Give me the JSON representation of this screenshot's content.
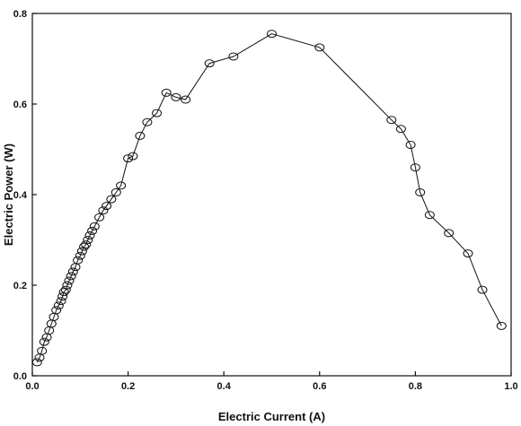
{
  "chart_data": {
    "type": "scatter",
    "title": "",
    "xlabel": "Electric Current (A)",
    "ylabel": "Electric Power (W)",
    "xlim": [
      0.0,
      1.0
    ],
    "ylim": [
      0.0,
      0.8
    ],
    "x_ticks": [
      "0.0",
      "0.2",
      "0.4",
      "0.6",
      "0.8",
      "1.0"
    ],
    "y_ticks": [
      "0.0",
      "0.2",
      "0.4",
      "0.6",
      "0.8"
    ],
    "grid": false,
    "legend": "none",
    "marker": "open-ellipse",
    "line": "connected",
    "series": [
      {
        "x": [
          0.01,
          0.015,
          0.02,
          0.025,
          0.03,
          0.035,
          0.04,
          0.045,
          0.05,
          0.055,
          0.06,
          0.063,
          0.066,
          0.07,
          0.073,
          0.077,
          0.081,
          0.085,
          0.09,
          0.095,
          0.1,
          0.104,
          0.108,
          0.112,
          0.116,
          0.12,
          0.125,
          0.13,
          0.14,
          0.148,
          0.155,
          0.165,
          0.175,
          0.185,
          0.2,
          0.21,
          0.225,
          0.24,
          0.26,
          0.28,
          0.3,
          0.32,
          0.37,
          0.42,
          0.5,
          0.6,
          0.75,
          0.77,
          0.79,
          0.8,
          0.81,
          0.83,
          0.87,
          0.91,
          0.94,
          0.98
        ],
        "y": [
          0.03,
          0.04,
          0.055,
          0.075,
          0.085,
          0.1,
          0.115,
          0.13,
          0.145,
          0.155,
          0.165,
          0.175,
          0.185,
          0.19,
          0.2,
          0.21,
          0.22,
          0.23,
          0.24,
          0.255,
          0.265,
          0.275,
          0.285,
          0.29,
          0.3,
          0.31,
          0.32,
          0.33,
          0.35,
          0.365,
          0.375,
          0.39,
          0.405,
          0.42,
          0.48,
          0.485,
          0.53,
          0.56,
          0.58,
          0.625,
          0.615,
          0.61,
          0.69,
          0.705,
          0.755,
          0.725,
          0.565,
          0.545,
          0.51,
          0.46,
          0.405,
          0.355,
          0.315,
          0.27,
          0.19,
          0.11
        ]
      }
    ]
  }
}
